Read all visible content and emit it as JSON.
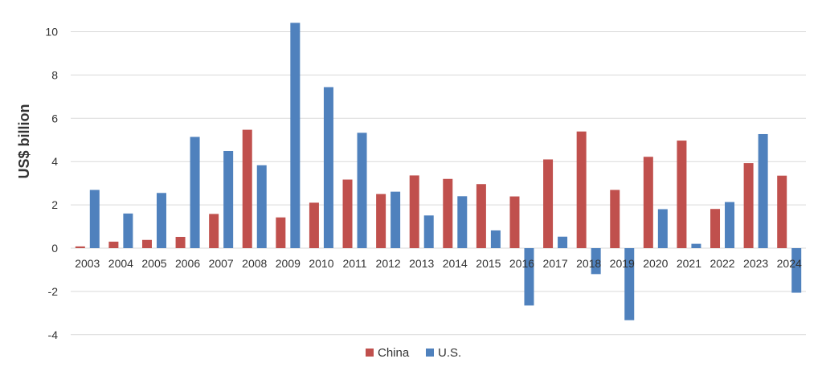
{
  "chart_data": {
    "type": "bar",
    "title": "",
    "xlabel": "",
    "ylabel": "US$ billion",
    "ylim": [
      -4,
      10
    ],
    "yticks": [
      -4,
      -2,
      0,
      2,
      4,
      6,
      8,
      10
    ],
    "grid": true,
    "legend_position": "bottom",
    "categories": [
      "2003",
      "2004",
      "2005",
      "2006",
      "2007",
      "2008",
      "2009",
      "2010",
      "2011",
      "2012",
      "2013",
      "2014",
      "2015",
      "2016",
      "2017",
      "2018",
      "2019",
      "2020",
      "2021",
      "2022",
      "2023",
      "2024"
    ],
    "series": [
      {
        "name": "China",
        "color": "#c0504d",
        "values": [
          0.08,
          0.3,
          0.38,
          0.52,
          1.58,
          5.47,
          1.42,
          2.1,
          3.17,
          2.5,
          3.36,
          3.2,
          2.96,
          2.39,
          4.1,
          5.39,
          2.69,
          4.22,
          4.97,
          1.81,
          3.93,
          3.35
        ]
      },
      {
        "name": "U.S.",
        "color": "#4f81bd",
        "values": [
          2.69,
          1.6,
          2.55,
          5.14,
          4.49,
          3.83,
          10.41,
          7.44,
          5.33,
          2.61,
          1.51,
          2.4,
          0.82,
          -2.65,
          0.53,
          -1.2,
          -3.33,
          1.8,
          0.2,
          2.13,
          5.27,
          -2.06
        ]
      }
    ]
  }
}
